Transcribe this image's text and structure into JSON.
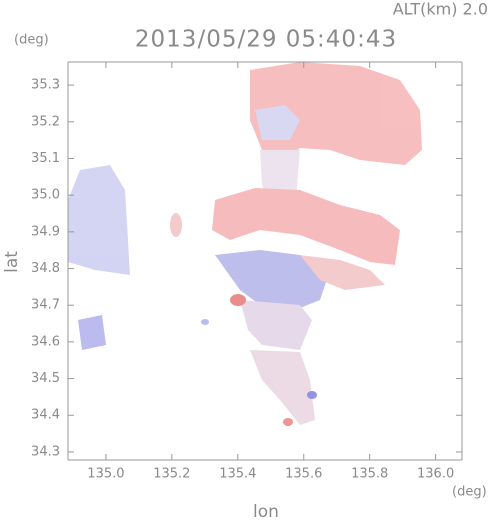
{
  "chart_data": {
    "type": "map",
    "title": "2013/05/29 05:40:43",
    "subtitle": "ALT(km) 2.0",
    "y_unit": "(deg)",
    "x_unit": "(deg)",
    "xlabel": "lon",
    "ylabel": "lat",
    "xlim": [
      134.885,
      136.08
    ],
    "ylim": [
      34.278,
      35.363
    ],
    "xticks": [
      {
        "value": 135,
        "label": "135.0"
      },
      135.2,
      135.4,
      135.6,
      135.8,
      {
        "value": 136,
        "label": "136.0"
      }
    ],
    "yticks": [
      34.3,
      34.4,
      34.5,
      34.6,
      34.7,
      34.8,
      34.9,
      {
        "value": 35,
        "label": "35.0"
      },
      35.1,
      35.2,
      35.3
    ]
  }
}
